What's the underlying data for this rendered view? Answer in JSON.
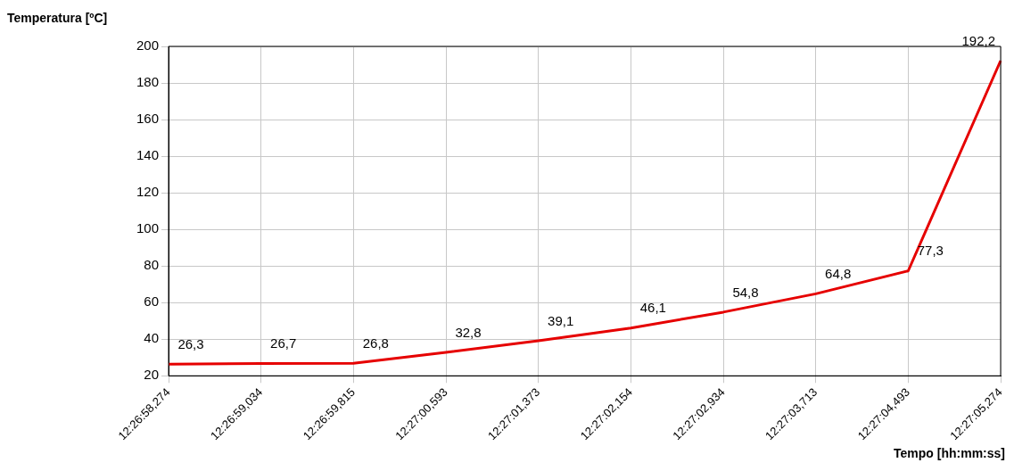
{
  "chart_data": {
    "type": "line",
    "xlabel": "Tempo [hh:mm:ss]",
    "ylabel": "Temperatura [ºC]",
    "categories": [
      "12:26:58,274",
      "12:26:59,034",
      "12:26:59,815",
      "12:27:00,593",
      "12:27:01,373",
      "12:27:02,154",
      "12:27:02,934",
      "12:27:03,713",
      "12:27:04,493",
      "12:27:05,274"
    ],
    "ylim": [
      20,
      200
    ],
    "yticks": [
      20,
      40,
      60,
      80,
      100,
      120,
      140,
      160,
      180,
      200
    ],
    "grid": true,
    "legend": false,
    "marker": "none",
    "line_style": "solid",
    "series": [
      {
        "color": "#e60000",
        "values": [
          26.3,
          26.7,
          26.8,
          32.8,
          39.1,
          46.1,
          54.8,
          64.8,
          77.3,
          192.2
        ],
        "value_labels": [
          "26,3",
          "26,7",
          "26,8",
          "32,8",
          "39,1",
          "46,1",
          "54,8",
          "64,8",
          "77,3",
          "192,2"
        ]
      }
    ]
  }
}
